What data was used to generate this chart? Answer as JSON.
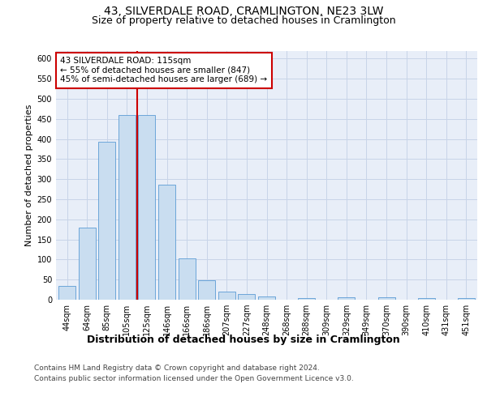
{
  "title": "43, SILVERDALE ROAD, CRAMLINGTON, NE23 3LW",
  "subtitle": "Size of property relative to detached houses in Cramlington",
  "xlabel": "Distribution of detached houses by size in Cramlington",
  "ylabel": "Number of detached properties",
  "footnote1": "Contains HM Land Registry data © Crown copyright and database right 2024.",
  "footnote2": "Contains public sector information licensed under the Open Government Licence v3.0.",
  "categories": [
    "44sqm",
    "64sqm",
    "85sqm",
    "105sqm",
    "125sqm",
    "146sqm",
    "166sqm",
    "186sqm",
    "207sqm",
    "227sqm",
    "248sqm",
    "268sqm",
    "288sqm",
    "309sqm",
    "329sqm",
    "349sqm",
    "370sqm",
    "390sqm",
    "410sqm",
    "431sqm",
    "451sqm"
  ],
  "values": [
    35,
    180,
    393,
    460,
    460,
    287,
    103,
    49,
    20,
    14,
    9,
    0,
    5,
    0,
    6,
    0,
    6,
    0,
    4,
    0,
    5
  ],
  "bar_color": "#c9ddf0",
  "bar_edge_color": "#5b9bd5",
  "vline_x": 3.5,
  "vline_color": "#cc0000",
  "annotation_text": "43 SILVERDALE ROAD: 115sqm\n← 55% of detached houses are smaller (847)\n45% of semi-detached houses are larger (689) →",
  "annotation_box_color": "#ffffff",
  "annotation_box_edge": "#cc0000",
  "ylim": [
    0,
    620
  ],
  "yticks": [
    0,
    50,
    100,
    150,
    200,
    250,
    300,
    350,
    400,
    450,
    500,
    550,
    600
  ],
  "grid_color": "#c8d4e8",
  "bg_color": "#e8eef8",
  "title_fontsize": 10,
  "subtitle_fontsize": 9,
  "ylabel_fontsize": 8,
  "xlabel_fontsize": 9,
  "tick_fontsize": 7,
  "annot_fontsize": 7.5,
  "footer_fontsize": 6.5
}
